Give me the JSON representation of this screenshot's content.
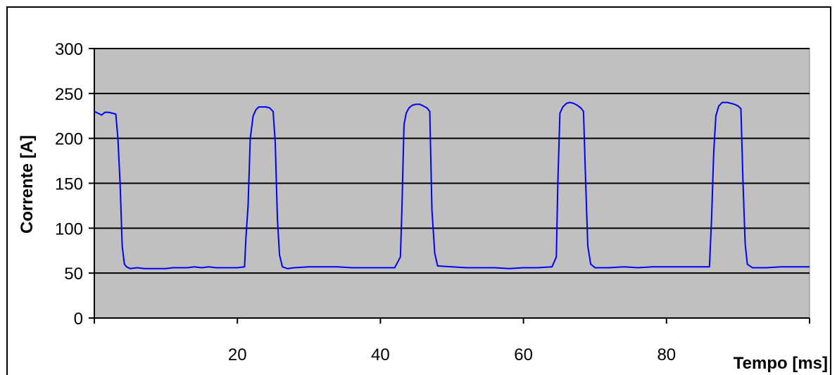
{
  "chart_data": {
    "type": "line",
    "title": "",
    "xlabel": "Tempo [ms]",
    "ylabel": "Corrente [A]",
    "xlim": [
      0,
      100
    ],
    "ylim": [
      0,
      300
    ],
    "x_ticks": [
      0,
      20,
      40,
      60,
      80,
      100
    ],
    "x_tick_labels": [
      "20",
      "40",
      "60",
      "80"
    ],
    "y_ticks": [
      0,
      50,
      100,
      150,
      200,
      250,
      300
    ],
    "y_tick_labels": [
      "0",
      "50",
      "100",
      "150",
      "200",
      "250",
      "300"
    ],
    "grid": "horizontal",
    "legend": "none",
    "colors": {
      "plot_background": "#c0c0c0",
      "series": "#0000ff",
      "grid": "#000000"
    },
    "series": [
      {
        "x": [
          0,
          0.5,
          1.0,
          1.5,
          2.0,
          2.5,
          3.0,
          3.3,
          3.6,
          3.9,
          4.2,
          4.5,
          5.0,
          6.0,
          7.0,
          8.0,
          9.0,
          10.0,
          11.0,
          12.0,
          13.0,
          14.0,
          15.0,
          16.0,
          17.0,
          18.0,
          19.0,
          20.0,
          21.0,
          21.2,
          21.5,
          21.8,
          22.2,
          22.6,
          23.0,
          23.5,
          24.0,
          24.5,
          25.0,
          25.3,
          25.6,
          25.9,
          26.3,
          27.0,
          28.0,
          30.0,
          32.0,
          34.0,
          36.0,
          38.0,
          40.0,
          42.0,
          42.8,
          43.0,
          43.3,
          43.6,
          44.0,
          44.5,
          45.0,
          45.5,
          46.0,
          46.5,
          46.9,
          47.2,
          47.6,
          48.0,
          50.0,
          52.0,
          54.0,
          56.0,
          58.0,
          60.0,
          62.0,
          64.0,
          64.6,
          64.8,
          65.1,
          65.5,
          66.0,
          66.5,
          67.0,
          67.5,
          68.0,
          68.4,
          68.7,
          69.0,
          69.4,
          70.0,
          72.0,
          74.0,
          76.0,
          78.0,
          80.0,
          82.0,
          84.0,
          86.0,
          86.3,
          86.6,
          86.9,
          87.3,
          87.8,
          88.5,
          89.0,
          89.5,
          90.0,
          90.4,
          90.7,
          91.0,
          91.3,
          92.0,
          94.0,
          96.0,
          98.0,
          100.0
        ],
        "y": [
          230,
          228,
          226,
          229,
          229,
          228,
          227,
          200,
          150,
          80,
          60,
          57,
          55,
          56,
          55,
          55,
          55,
          55,
          56,
          56,
          56,
          57,
          56,
          57,
          56,
          56,
          56,
          56,
          57,
          90,
          125,
          200,
          225,
          232,
          235,
          235,
          235,
          234,
          230,
          195,
          110,
          70,
          57,
          55,
          56,
          57,
          57,
          57,
          56,
          56,
          56,
          56,
          68,
          120,
          215,
          228,
          234,
          237,
          238,
          238,
          236,
          234,
          230,
          120,
          72,
          58,
          57,
          56,
          56,
          56,
          55,
          56,
          56,
          57,
          68,
          150,
          228,
          235,
          239,
          240,
          239,
          237,
          234,
          230,
          150,
          80,
          60,
          56,
          56,
          57,
          56,
          57,
          57,
          57,
          57,
          57,
          110,
          185,
          225,
          236,
          240,
          240,
          239,
          238,
          236,
          233,
          150,
          82,
          60,
          56,
          56,
          57,
          57,
          57
        ]
      }
    ]
  }
}
